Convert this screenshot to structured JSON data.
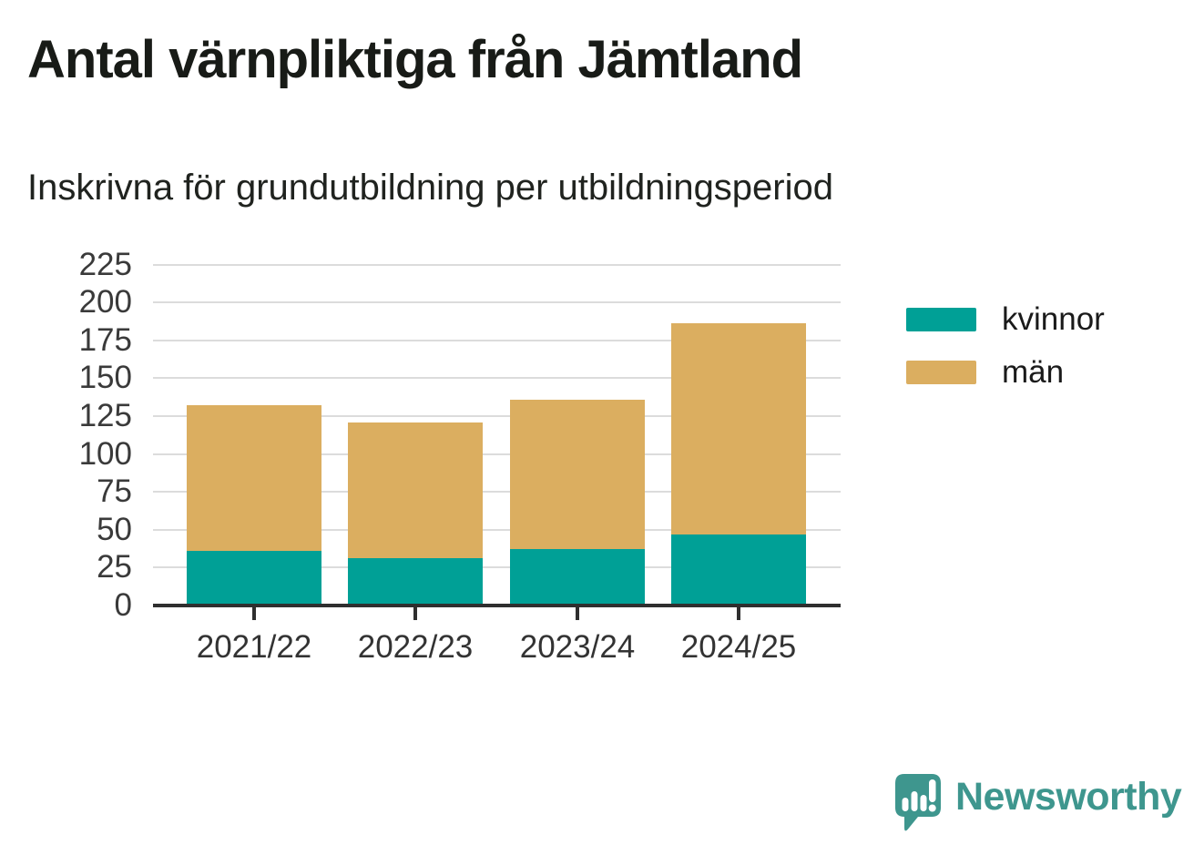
{
  "title": "Antal värnpliktiga från Jämtland",
  "subtitle": "Inskrivna för grundutbildning per utbildningsperiod",
  "chart_data": {
    "type": "bar",
    "stacked": true,
    "categories": [
      "2021/22",
      "2022/23",
      "2023/24",
      "2024/25"
    ],
    "series": [
      {
        "name": "kvinnor",
        "color": "#00A096",
        "values": [
          36,
          31,
          37,
          47
        ]
      },
      {
        "name": "män",
        "color": "#DBAE60",
        "values": [
          96,
          90,
          99,
          139
        ]
      }
    ],
    "ylim": [
      0,
      225
    ],
    "ytick_step": 25,
    "grid": true,
    "legend_position": "right",
    "colors": {
      "axis": "#2F2F2F",
      "gridline": "#DCDCDC",
      "tick_label": "#3A3A3A"
    }
  },
  "branding": {
    "text": "Newsworthy",
    "color": "#3E968E",
    "icon": "newsworthy-speech-bubble-chart-icon"
  }
}
